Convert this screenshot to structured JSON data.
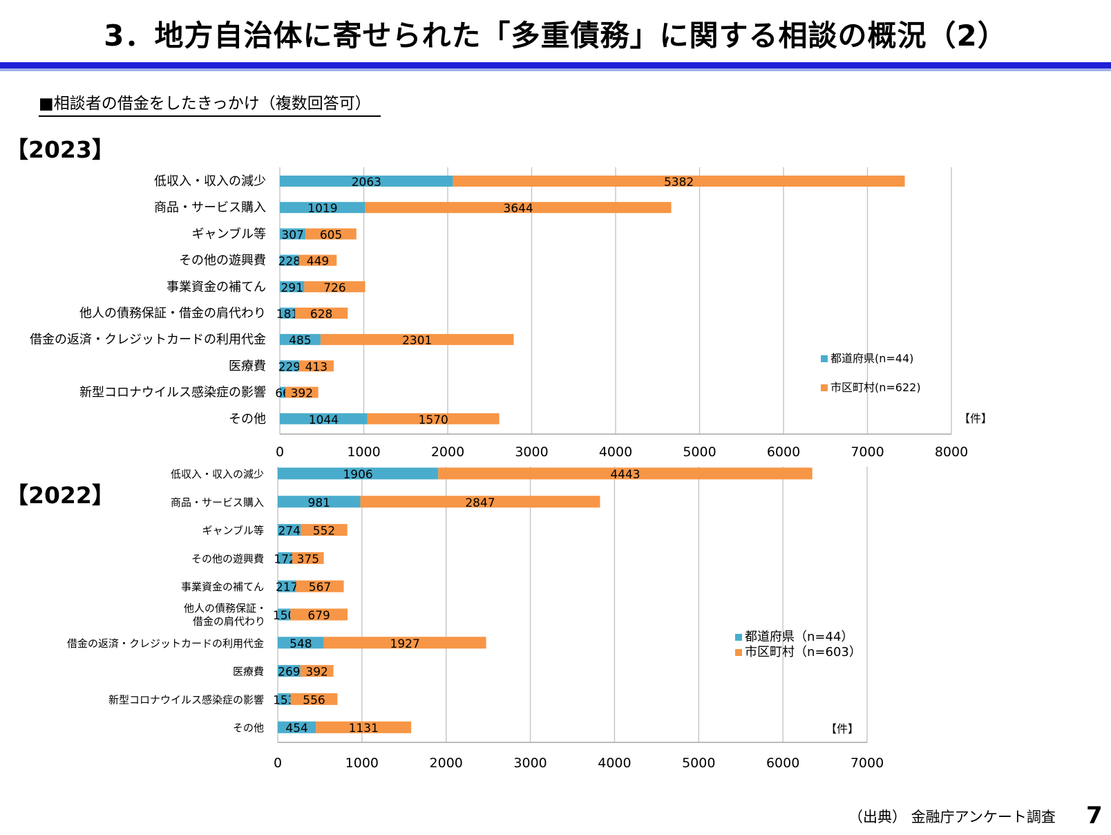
{
  "title": "3．地方自治体に寄せられた「多重債務」に関する相談の概況（2）",
  "subtitle": "■相談者の借金をしたきっかけ（複数回答可）",
  "footer": {
    "source": "（出典） 金融庁アンケート調査",
    "page_number": "7"
  },
  "colors": {
    "prefecture": "#4aaccc",
    "municipality": "#f79646",
    "grid": "#c0c0c0"
  },
  "chart_data": [
    {
      "type": "bar",
      "orientation": "horizontal",
      "stacked": true,
      "year_label": "【2023】",
      "categories": [
        "低収入・収入の減少",
        "商品・サービス購入",
        "ギャンブル等",
        "その他の遊興費",
        "事業資金の補てん",
        "他人の債務保証・借金の肩代わり",
        "借金の返済・クレジットカードの利用代金",
        "医療費",
        "新型コロナウイルス感染症の影響",
        "その他"
      ],
      "series": [
        {
          "name": "都道府県(n=44)",
          "values": [
            2063,
            1019,
            307,
            228,
            291,
            181,
            485,
            229,
            66,
            1044
          ]
        },
        {
          "name": "市区町村(n=622)",
          "values": [
            5382,
            3644,
            605,
            449,
            726,
            628,
            2301,
            413,
            392,
            1570
          ]
        }
      ],
      "xlim": [
        0,
        8000
      ],
      "xticks": [
        "0",
        "1000",
        "2000",
        "3000",
        "4000",
        "5000",
        "6000",
        "7000",
        "8000"
      ],
      "unit": "【件】",
      "legend_position": "right"
    },
    {
      "type": "bar",
      "orientation": "horizontal",
      "stacked": true,
      "year_label": "【2022】",
      "categories": [
        "低収入・収入の減少",
        "商品・サービス購入",
        "ギャンブル等",
        "その他の遊興費",
        "事業資金の補てん",
        [
          "他人の債務保証・",
          "借金の肩代わり"
        ],
        "借金の返済・クレジットカードの利用代金",
        "医療費",
        "新型コロナウイルス感染症の影響",
        "その他"
      ],
      "series": [
        {
          "name": "都道府県（n=44）",
          "values": [
            1906,
            981,
            274,
            172,
            217,
            150,
            548,
            269,
            153,
            454
          ]
        },
        {
          "name": "市区町村（n=603）",
          "values": [
            4443,
            2847,
            552,
            375,
            567,
            679,
            1927,
            392,
            556,
            1131
          ]
        }
      ],
      "xlim": [
        0,
        7000
      ],
      "xticks": [
        "0",
        "1000",
        "2000",
        "3000",
        "4000",
        "5000",
        "6000",
        "7000"
      ],
      "unit": "【件】",
      "legend_position": "right"
    }
  ]
}
